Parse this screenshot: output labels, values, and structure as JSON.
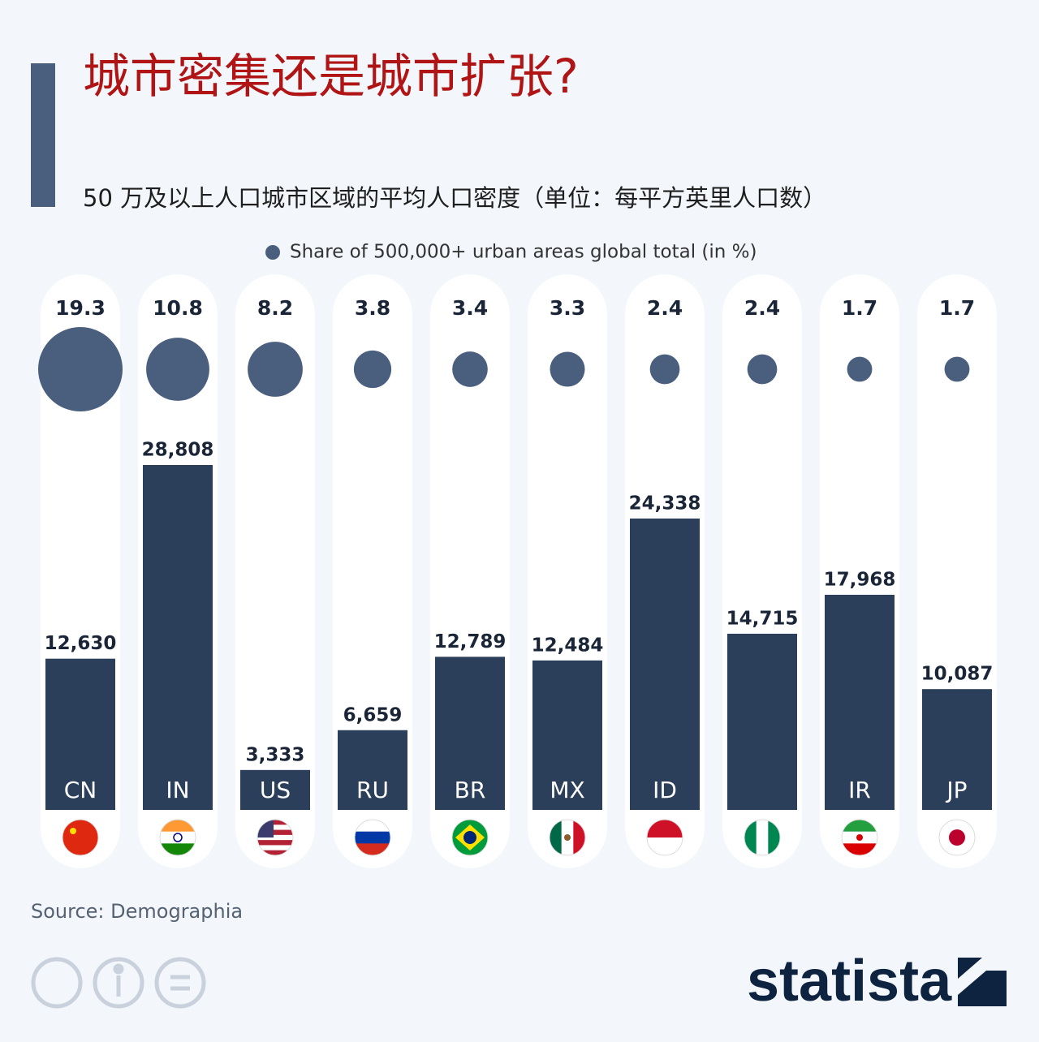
{
  "chart_data": {
    "type": "bar",
    "title": "城市密集还是城市扩张?",
    "subtitle": "50 万及以上人口城市区域的平均人口密度（单位：每平方英里人口数）",
    "categories": [
      "CN",
      "IN",
      "US",
      "RU",
      "BR",
      "MX",
      "ID",
      null,
      "IR",
      "JP"
    ],
    "series": [
      {
        "color": "#2b3f5a",
        "values": [
          12630,
          28808,
          3333,
          6659,
          12789,
          12484,
          24338,
          14715,
          17968,
          10087
        ],
        "value_labels": [
          "12,630",
          "28,808",
          "3,333",
          "6,659",
          "12,789",
          "12,484",
          "24,338",
          "14,715",
          "17,968",
          "10,087"
        ]
      },
      {
        "type": "bubble",
        "name": "Share of 500,000+ urban areas global total (in %)",
        "color": "#4a5f7e",
        "values": [
          19.3,
          10.8,
          8.2,
          3.8,
          3.4,
          3.3,
          2.4,
          2.4,
          1.7,
          1.7
        ]
      }
    ],
    "source": "Source: Demographia",
    "brand": "statista"
  }
}
